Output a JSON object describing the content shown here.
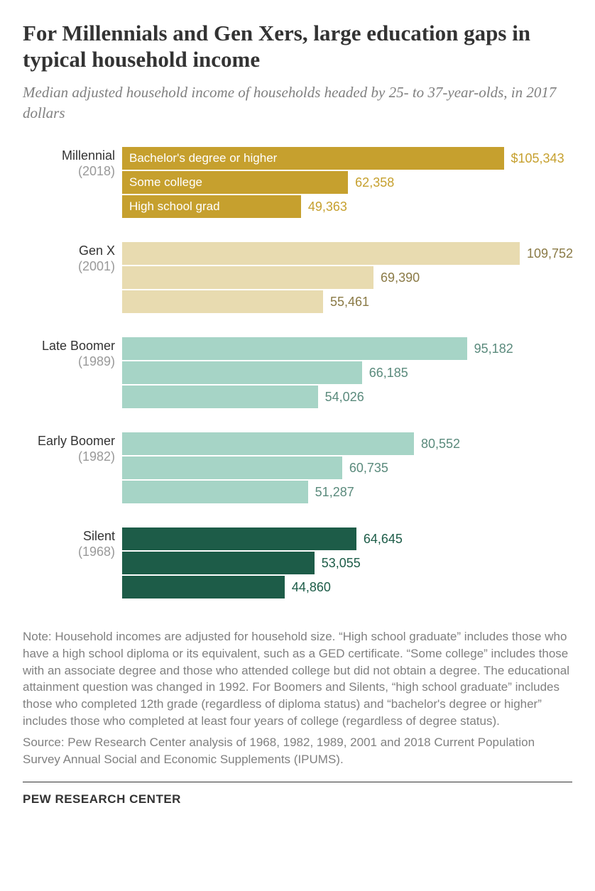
{
  "title": "For Millennials and Gen Xers, large education gaps in typical household income",
  "subtitle": "Median adjusted household income of households headed by 25- to 37-year-olds, in 2017 dollars",
  "chart": {
    "type": "bar",
    "max_value": 109752,
    "bar_area_width": 560,
    "bar_label_fontsize": 17,
    "value_fontsize": 18,
    "group_name_fontsize": 18,
    "background_color": "#ffffff",
    "categories": [
      "Bachelor's degree or higher",
      "Some college",
      "High school grad"
    ],
    "groups": [
      {
        "name": "Millennial",
        "year": "(2018)",
        "color": "#c6a02e",
        "value_text_color": "#c6a02e",
        "label_text_color": "#ffffff",
        "show_labels": true,
        "bars": [
          {
            "value": 105343,
            "display": "$105,343"
          },
          {
            "value": 62358,
            "display": "62,358"
          },
          {
            "value": 49363,
            "display": "49,363"
          }
        ]
      },
      {
        "name": "Gen X",
        "year": "(2001)",
        "color": "#e8dbb0",
        "value_text_color": "#8a7a46",
        "label_text_color": "#ffffff",
        "show_labels": false,
        "bars": [
          {
            "value": 109752,
            "display": "109,752"
          },
          {
            "value": 69390,
            "display": "69,390"
          },
          {
            "value": 55461,
            "display": "55,461"
          }
        ]
      },
      {
        "name": "Late Boomer",
        "year": "(1989)",
        "color": "#a6d4c6",
        "value_text_color": "#5a8a7c",
        "label_text_color": "#ffffff",
        "show_labels": false,
        "bars": [
          {
            "value": 95182,
            "display": "95,182"
          },
          {
            "value": 66185,
            "display": "66,185"
          },
          {
            "value": 54026,
            "display": "54,026"
          }
        ]
      },
      {
        "name": "Early Boomer",
        "year": "(1982)",
        "color": "#a6d4c6",
        "value_text_color": "#5a8a7c",
        "label_text_color": "#ffffff",
        "show_labels": false,
        "bars": [
          {
            "value": 80552,
            "display": "80,552"
          },
          {
            "value": 60735,
            "display": "60,735"
          },
          {
            "value": 51287,
            "display": "51,287"
          }
        ]
      },
      {
        "name": "Silent",
        "year": "(1968)",
        "color": "#1d5c48",
        "value_text_color": "#1d5c48",
        "label_text_color": "#ffffff",
        "show_labels": false,
        "bars": [
          {
            "value": 64645,
            "display": "64,645"
          },
          {
            "value": 53055,
            "display": "53,055"
          },
          {
            "value": 44860,
            "display": "44,860"
          }
        ]
      }
    ]
  },
  "note": "Note: Household incomes are adjusted for household size. “High school graduate” includes those who have a high school diploma or its equivalent, such as a GED certificate. “Some college” includes those with an associate degree and those who attended college but did not obtain a degree. The educational attainment question was changed in 1992. For Boomers and Silents, “high school graduate” includes those who completed 12th grade (regardless of diploma status) and “bachelor's degree or higher” includes those who completed at least four years of college (regardless of degree status).",
  "source": "Source: Pew Research Center analysis of 1968, 1982, 1989, 2001 and 2018 Current Population Survey Annual Social and Economic Supplements (IPUMS).",
  "footer": "PEW RESEARCH CENTER"
}
